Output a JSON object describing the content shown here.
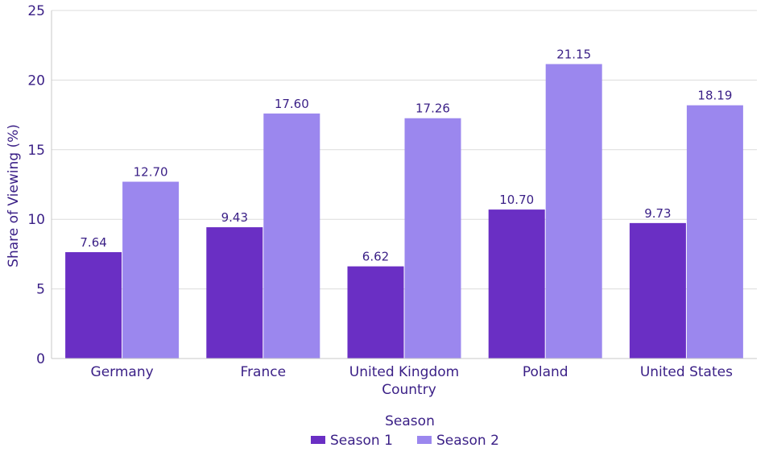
{
  "chart_data": {
    "type": "bar",
    "xlabel": "Country",
    "ylabel": "Share of Viewing (%)",
    "ylim": [
      0,
      25
    ],
    "yticks": [
      0,
      5,
      10,
      15,
      20,
      25
    ],
    "grid": true,
    "categories": [
      "Germany",
      "France",
      "United Kingdom",
      "Poland",
      "United States"
    ],
    "series": [
      {
        "name": "Season 1",
        "color": "#6a2fc4",
        "values": [
          7.64,
          9.43,
          6.62,
          10.7,
          9.73
        ],
        "labels": [
          "7.64",
          "9.43",
          "6.62",
          "10.70",
          "9.73"
        ]
      },
      {
        "name": "Season 2",
        "color": "#9b87ee",
        "values": [
          12.7,
          17.6,
          17.26,
          21.15,
          18.19
        ],
        "labels": [
          "12.70",
          "17.60",
          "17.26",
          "21.15",
          "18.19"
        ]
      }
    ],
    "legend": {
      "title": "Season",
      "position": "bottom-center"
    }
  }
}
